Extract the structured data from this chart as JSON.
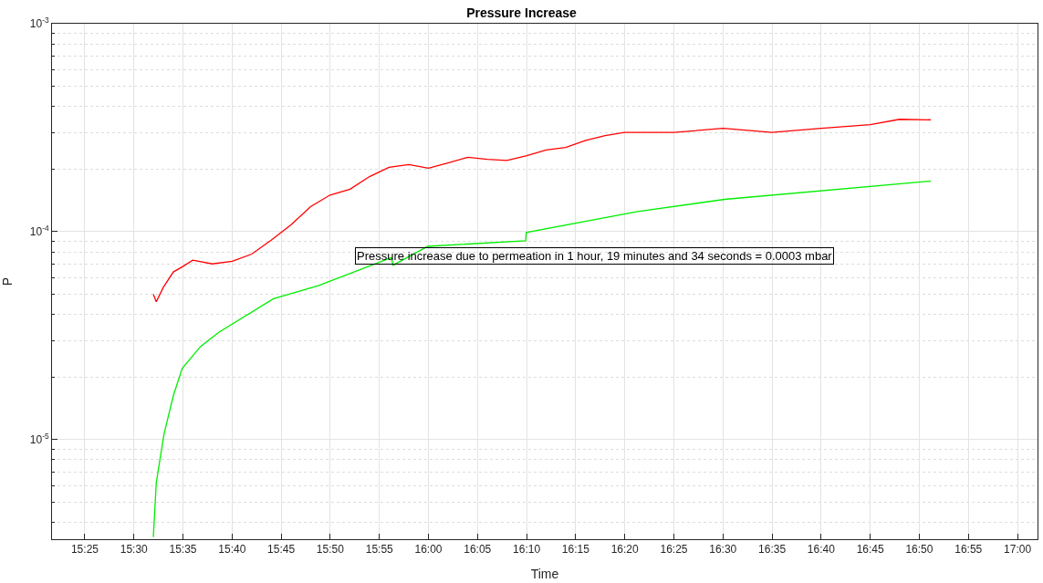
{
  "chart_data": {
    "type": "line",
    "title": "Pressure Increase",
    "xlabel": "Time",
    "ylabel": "P",
    "xlim": [
      15.361,
      17.034
    ],
    "ylim": [
      3.32e-06,
      0.001
    ],
    "log": "y",
    "grid": true,
    "marker": "none",
    "line_style": "solid",
    "xticks": [
      {
        "value": 15.4167,
        "label": "15:25"
      },
      {
        "value": 15.5,
        "label": "15:30"
      },
      {
        "value": 15.5833,
        "label": "15:35"
      },
      {
        "value": 15.6667,
        "label": "15:40"
      },
      {
        "value": 15.75,
        "label": "15:45"
      },
      {
        "value": 15.8333,
        "label": "15:50"
      },
      {
        "value": 15.9167,
        "label": "15:55"
      },
      {
        "value": 16.0,
        "label": "16:00"
      },
      {
        "value": 16.0833,
        "label": "16:05"
      },
      {
        "value": 16.1667,
        "label": "16:10"
      },
      {
        "value": 16.25,
        "label": "16:15"
      },
      {
        "value": 16.3333,
        "label": "16:20"
      },
      {
        "value": 16.4167,
        "label": "16:25"
      },
      {
        "value": 16.5,
        "label": "16:30"
      },
      {
        "value": 16.5833,
        "label": "16:35"
      },
      {
        "value": 16.6667,
        "label": "16:40"
      },
      {
        "value": 16.75,
        "label": "16:45"
      },
      {
        "value": 16.8333,
        "label": "16:50"
      },
      {
        "value": 16.9167,
        "label": "16:55"
      },
      {
        "value": 17.0,
        "label": "17:00"
      }
    ],
    "yticks": [
      {
        "value": 1e-05,
        "label": "10$^{-5}$"
      },
      {
        "value": 0.0001,
        "label": "10$^{-4}$"
      },
      {
        "value": 0.001,
        "label": "10$^{-3}$"
      }
    ],
    "annotations": [
      "Pressure increase due to permeation in 1 hour, 19 minutes and 34 seconds = 0.0003 mbar"
    ],
    "series": [
      {
        "color": "#ff0000",
        "x": [
          15.533,
          15.538,
          15.55,
          15.567,
          15.583,
          15.6,
          15.633,
          15.667,
          15.7,
          15.733,
          15.767,
          15.8,
          15.833,
          15.867,
          15.9,
          15.933,
          15.967,
          16.0,
          16.033,
          16.067,
          16.1,
          16.133,
          16.167,
          16.2,
          16.233,
          16.267,
          16.3,
          16.333,
          16.417,
          16.5,
          16.583,
          16.667,
          16.75,
          16.8,
          16.853
        ],
        "values": [
          5e-05,
          4.6e-05,
          5.4e-05,
          6.4e-05,
          6.8e-05,
          7.3e-05,
          7e-05,
          7.2e-05,
          7.8e-05,
          9.1e-05,
          0.000108,
          0.000132,
          0.00015,
          0.00016,
          0.000184,
          0.000204,
          0.00021,
          0.000202,
          0.000214,
          0.000228,
          0.000223,
          0.00022,
          0.000232,
          0.000247,
          0.000254,
          0.000275,
          0.00029,
          0.0003,
          0.0003,
          0.000314,
          0.0003,
          0.000314,
          0.000327,
          0.000347,
          0.000345
        ]
      },
      {
        "color": "#00ee00",
        "x": [
          15.533,
          15.538,
          15.551,
          15.567,
          15.582,
          15.613,
          15.644,
          15.737,
          15.813,
          15.937,
          15.94,
          15.999,
          16.165,
          16.166,
          16.355,
          16.503,
          16.853
        ],
        "values": [
          3.4e-06,
          6.2e-06,
          1.06e-05,
          1.63e-05,
          2.2e-05,
          2.8e-05,
          3.28e-05,
          4.76e-05,
          5.5e-05,
          7.5e-05,
          6.9e-05,
          8.5e-05,
          9.05e-05,
          9.9e-05,
          0.000125,
          0.000143,
          0.000175
        ]
      }
    ]
  }
}
